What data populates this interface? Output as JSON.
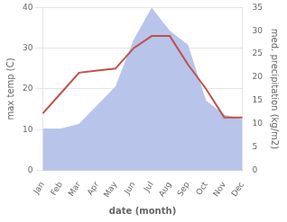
{
  "chart_data": {
    "type": "line",
    "xlabel": "date (month)",
    "ylabel": "max temp (C)",
    "y2label": "med. precipitation (kg/m2)",
    "categories": [
      "Jan",
      "Feb",
      "Mar",
      "Apr",
      "May",
      "Jun",
      "Jul",
      "Aug",
      "Sep",
      "Oct",
      "Nov",
      "Dec"
    ],
    "series": [
      {
        "type": "area",
        "color": "#b8c4ea",
        "axis": "y2",
        "values": [
          9,
          9,
          10,
          14,
          18,
          28,
          35,
          30,
          27,
          15,
          12,
          11
        ]
      },
      {
        "type": "line",
        "color": "#c0504d",
        "values": [
          14,
          19,
          24,
          24.5,
          25,
          30,
          33,
          33,
          26,
          20,
          13,
          13
        ]
      }
    ],
    "ylim": [
      0,
      40
    ],
    "yticks": [
      0,
      10,
      20,
      30,
      40
    ],
    "y2lim": [
      0,
      35
    ],
    "y2ticks": [
      0,
      5,
      10,
      15,
      20,
      25,
      30,
      35
    ],
    "grid": true
  }
}
